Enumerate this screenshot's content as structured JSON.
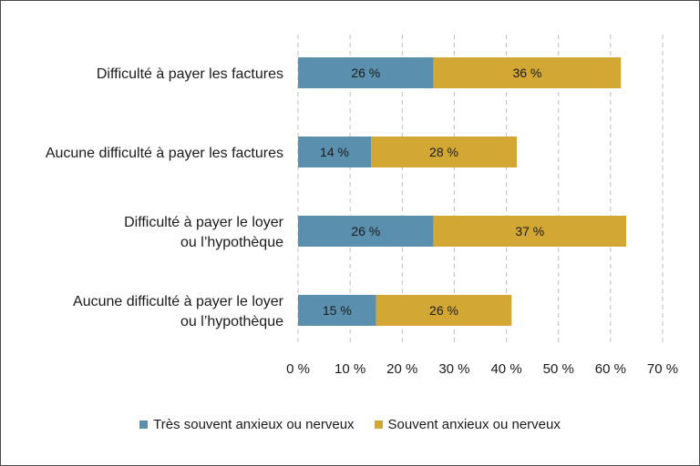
{
  "chart_data": {
    "type": "bar",
    "orientation": "horizontal",
    "stacked": true,
    "categories": [
      [
        "Difficulté à payer les factures"
      ],
      [
        "Aucune difficulté à payer les factures"
      ],
      [
        "Difficulté à payer le loyer",
        "ou l’hypothèque"
      ],
      [
        "Aucune difficulté à payer le loyer",
        "ou l’hypothèque"
      ]
    ],
    "series": [
      {
        "name": "Très souvent anxieux ou nerveux",
        "color": "#5a8fad",
        "values": [
          26,
          14,
          26,
          15
        ],
        "labels": [
          "26 %",
          "14 %",
          "26 %",
          "15 %"
        ]
      },
      {
        "name": "Souvent anxieux ou nerveux",
        "color": "#d3a734",
        "values": [
          36,
          28,
          37,
          26
        ],
        "labels": [
          "36 %",
          "28 %",
          "37 %",
          "26 %"
        ]
      }
    ],
    "xlim": [
      0,
      70
    ],
    "xticks": [
      0,
      10,
      20,
      30,
      40,
      50,
      60,
      70
    ],
    "xtick_labels": [
      "0 %",
      "10 %",
      "20 %",
      "30 %",
      "40 %",
      "50 %",
      "60 %",
      "70 %"
    ],
    "grid": "vertical-dashed",
    "legend_position": "bottom"
  }
}
